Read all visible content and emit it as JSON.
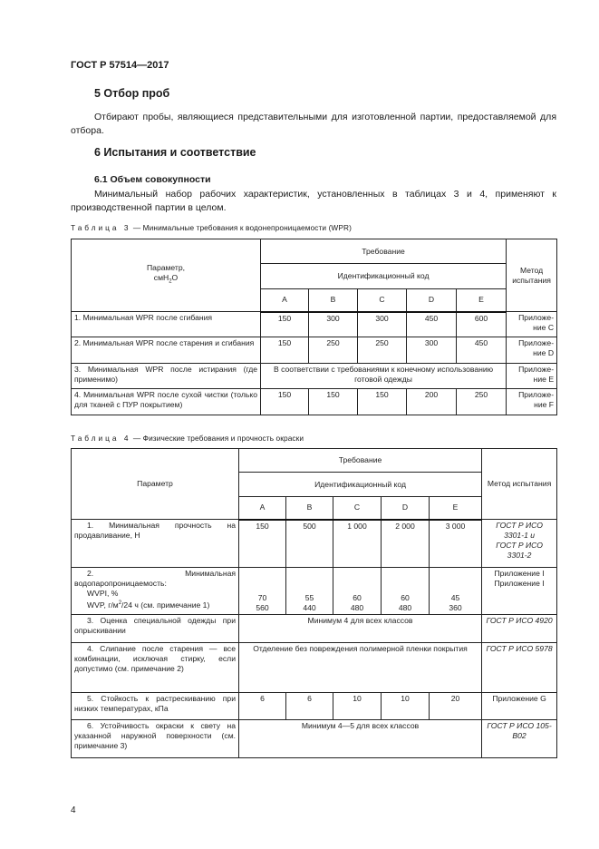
{
  "header": {
    "doc_id": "ГОСТ Р 57514—2017"
  },
  "section5": {
    "title": "5 Отбор проб",
    "text": "Отбирают пробы, являющиеся представительными для изготовленной партии, предоставляемой для отбора."
  },
  "section6": {
    "title": "6 Испытания и соответствие",
    "sub61": {
      "title": "6.1 Объем совокупности",
      "text": "Минимальный набор рабочих характеристик, установленных в таблицах 3 и 4, применяют к производственной партии в целом."
    }
  },
  "table3": {
    "caption_prefix": "Таблица 3",
    "caption_text": " — Минимальные требования к водонепроницаемости (WPR)",
    "param_header": "Параметр,",
    "param_unit_a": "смН",
    "param_unit_sub": "2",
    "param_unit_b": "О",
    "req_header": "Требование",
    "code_header": "Идентификационный код",
    "method_header": "Метод испытания",
    "codes": [
      "A",
      "B",
      "C",
      "D",
      "E"
    ],
    "rows": [
      {
        "param": "1. Минимальная WPR после сгибания",
        "values": [
          "150",
          "300",
          "300",
          "450",
          "600"
        ],
        "method": "Приложе-ние С"
      },
      {
        "param": "2. Минимальная WPR после старения и сгибания",
        "values": [
          "150",
          "250",
          "250",
          "300",
          "450"
        ],
        "method": "Приложе-ние D"
      },
      {
        "param": "3. Минимальная WPR после истирания (где применимо)",
        "merged": "В соответствии с требованиями к конечному использованию готовой одежды",
        "method": "Приложе-ние Е"
      },
      {
        "param": "4. Минимальная WPR после сухой чистки (только для тканей с ПУР покрытием)",
        "values": [
          "150",
          "150",
          "150",
          "200",
          "250"
        ],
        "method": "Приложе-ние F"
      }
    ]
  },
  "table4": {
    "caption_prefix": "Таблица 4",
    "caption_text": "  — Физические требования и прочность окраски",
    "param_header": "Параметр",
    "req_header": "Требование",
    "code_header": "Идентификационный код",
    "method_header": "Метод испытания",
    "codes": [
      "A",
      "B",
      "C",
      "D",
      "E"
    ],
    "row1": {
      "param": "1. Минимальная прочность на продавливание, Н",
      "values": [
        "150",
        "500",
        "1 000",
        "2 000",
        "3 000"
      ],
      "method_1": "ГОСТ Р ИСО 3301-1 и",
      "method_2": "ГОСТ Р ИСО 3301-2"
    },
    "row2": {
      "param": "2. Минимальная водопаропроницаемость:",
      "wvpi_label": "WVPI, %",
      "wvp_label_a": "WVP, г/м",
      "wvp_label_sup": "2",
      "wvp_label_b": "/24 ч (см. примечание 1)",
      "wvpi": [
        "70",
        "55",
        "60",
        "60",
        "45"
      ],
      "wvp": [
        "560",
        "440",
        "480",
        "480",
        "360"
      ],
      "method_1": "Приложение I",
      "method_2": "Приложение I"
    },
    "row3": {
      "param": "3. Оценка специальной одежды при опрыскивании",
      "merged": "Минимум 4 для всех классов",
      "method": "ГОСТ Р ИСО 4920"
    },
    "row4": {
      "param": "4. Слипание после старения — все комбинации, исключая стирку, если допустимо (см. примечание 2)",
      "merged": "Отделение без повреждения полимерной пленки покрытия",
      "method": "ГОСТ Р ИСО 5978"
    },
    "row5": {
      "param": "5. Стойкость к растрескиванию при низких температурах, кПа",
      "values": [
        "6",
        "6",
        "10",
        "10",
        "20"
      ],
      "method": "Приложение G"
    },
    "row6": {
      "param": "6. Устойчивость окраски к свету на указанной наружной поверхности (см. примечание 3)",
      "merged": "Минимум 4—5 для всех классов",
      "method": "ГОСТ Р ИСО 105-B02"
    }
  },
  "footer": {
    "page_number": "4"
  }
}
